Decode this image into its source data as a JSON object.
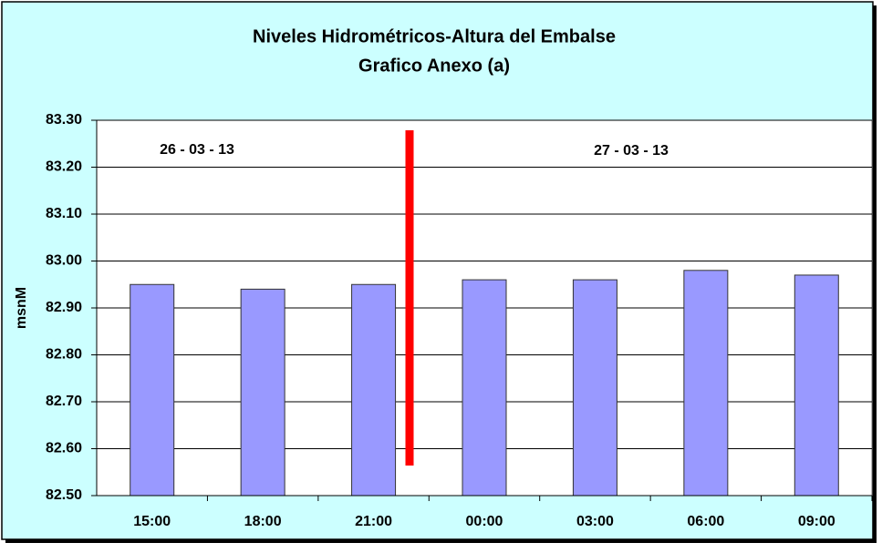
{
  "chart_data": {
    "type": "bar",
    "title": "Niveles Hidrométricos-Altura del Embalse",
    "subtitle": "Grafico Anexo (a)",
    "y_label": "msnM",
    "annotations": [
      "26 - 03 - 13",
      "27 - 03 - 13"
    ],
    "categories": [
      "15:00",
      "18:00",
      "21:00",
      "00:00",
      "03:00",
      "06:00",
      "09:00"
    ],
    "values": [
      82.95,
      82.94,
      82.95,
      82.96,
      82.96,
      82.98,
      82.97
    ],
    "color": "#9999ff",
    "ylim": [
      82.5,
      83.3
    ],
    "yticks": [
      {
        "value": 82.5,
        "label": "82.50"
      },
      {
        "value": 82.6,
        "label": "82.60"
      },
      {
        "value": 82.7,
        "label": "82.70"
      },
      {
        "value": 82.8,
        "label": "82.80"
      },
      {
        "value": 82.9,
        "label": "82.90"
      },
      {
        "value": 83.0,
        "label": "83.00"
      },
      {
        "value": 83.1,
        "label": "83.10"
      },
      {
        "value": 83.2,
        "label": "83.20"
      },
      {
        "value": 83.3,
        "label": "83.30"
      }
    ],
    "grid": true
  }
}
